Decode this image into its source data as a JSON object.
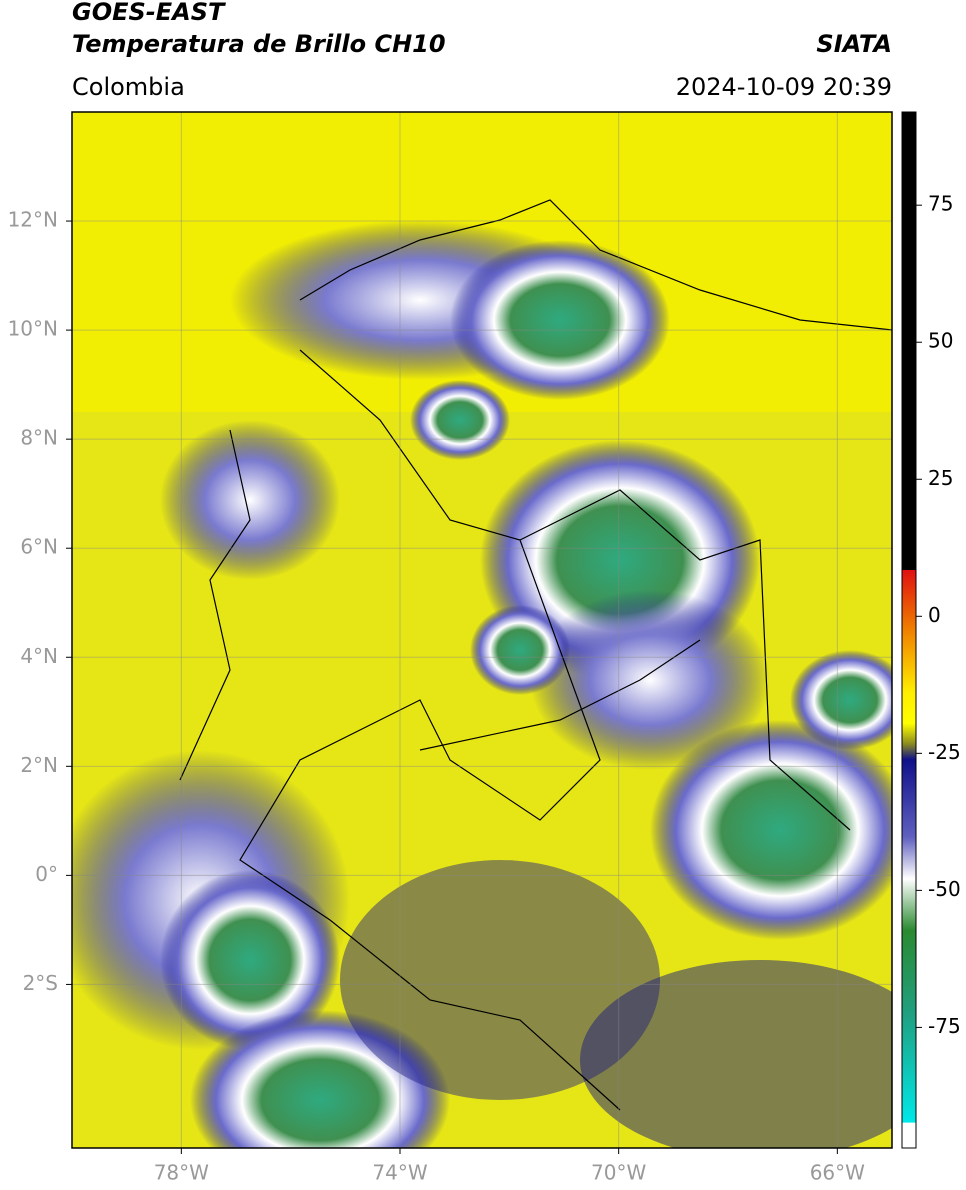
{
  "header": {
    "title_line1": "GOES-EAST",
    "title_line2": "Temperatura de Brillo CH10",
    "source": "SIATA",
    "region": "Colombia",
    "datetime": "2024-10-09 20:39"
  },
  "map": {
    "xlim": [
      -80,
      -65
    ],
    "ylim": [
      -5,
      14
    ],
    "xticks": [
      {
        "value": -78,
        "label": "78°W"
      },
      {
        "value": -74,
        "label": "74°W"
      },
      {
        "value": -70,
        "label": "70°W"
      },
      {
        "value": -66,
        "label": "66°W"
      }
    ],
    "yticks": [
      {
        "value": 12,
        "label": "12°N"
      },
      {
        "value": 10,
        "label": "10°N"
      },
      {
        "value": 8,
        "label": "8°N"
      },
      {
        "value": 6,
        "label": "6°N"
      },
      {
        "value": 4,
        "label": "4°N"
      },
      {
        "value": 2,
        "label": "2°N"
      },
      {
        "value": 0,
        "label": "0°"
      },
      {
        "value": -2,
        "label": "2°S"
      }
    ],
    "grid": true
  },
  "colorbar": {
    "lim": [
      -97,
      92
    ],
    "ticks": [
      75,
      50,
      25,
      0,
      -25,
      -50,
      -75
    ]
  }
}
